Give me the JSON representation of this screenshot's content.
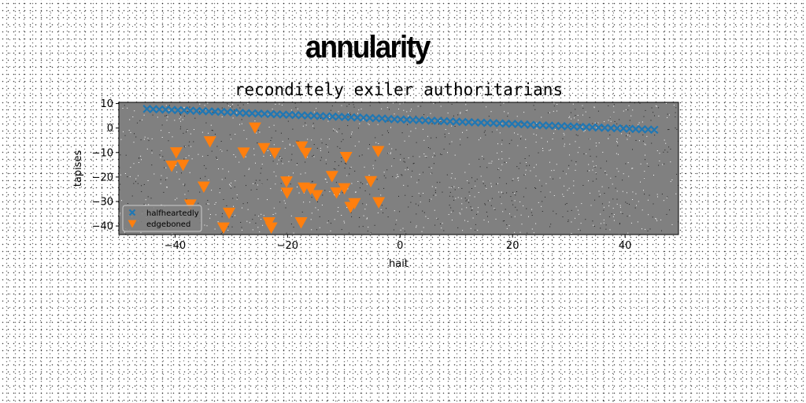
{
  "page": {
    "title": "annularity"
  },
  "chart_data": {
    "type": "scatter",
    "title": "reconditely exiler authoritarians",
    "xlabel": "hait",
    "ylabel": "tapises",
    "xlim": [
      -50,
      49.5
    ],
    "ylim": [
      -43.5,
      10.5
    ],
    "xticks": [
      -40,
      -20,
      0,
      20,
      40
    ],
    "yticks": [
      10,
      0,
      -10,
      -20,
      -30,
      -40
    ],
    "grid": false,
    "legend_position": "lower-left",
    "background": "#808080",
    "series": [
      {
        "name": "halfheartedly",
        "marker": "x",
        "color": "#1f77b4",
        "x": [
          -45.0,
          -43.9,
          -42.8,
          -41.7,
          -40.6,
          -39.5,
          -38.4,
          -37.3,
          -36.2,
          -35.1,
          -34.0,
          -32.9,
          -31.8,
          -30.7,
          -29.6,
          -28.5,
          -27.4,
          -26.3,
          -25.2,
          -24.1,
          -23.0,
          -21.9,
          -20.8,
          -19.7,
          -18.6,
          -17.5,
          -16.4,
          -15.3,
          -14.2,
          -13.1,
          -12.0,
          -10.9,
          -9.8,
          -8.7,
          -7.6,
          -6.5,
          -5.4,
          -4.3,
          -3.2,
          -2.1,
          -1.0,
          0.1,
          1.2,
          2.3,
          3.4,
          4.5,
          5.6,
          6.7,
          7.8,
          8.9,
          10.0,
          11.1,
          12.2,
          13.3,
          14.4,
          15.5,
          16.6,
          17.7,
          18.8,
          19.9,
          21.0,
          22.1,
          23.2,
          24.3,
          25.4,
          26.5,
          27.6,
          28.7,
          29.8,
          30.9,
          32.0,
          33.1,
          34.2,
          35.3,
          36.4,
          37.5,
          38.6,
          39.7,
          40.8,
          41.9,
          43.0,
          44.1,
          45.2
        ],
        "y": [
          7.8,
          7.7,
          7.6,
          7.5,
          7.4,
          7.3,
          7.2,
          7.1,
          7.0,
          6.9,
          6.8,
          6.7,
          6.6,
          6.5,
          6.4,
          6.2,
          6.1,
          6.0,
          5.9,
          5.8,
          5.7,
          5.6,
          5.5,
          5.4,
          5.3,
          5.2,
          5.1,
          5.0,
          4.9,
          4.8,
          4.7,
          4.6,
          4.5,
          4.4,
          4.3,
          4.2,
          4.1,
          4.0,
          3.9,
          3.7,
          3.6,
          3.5,
          3.4,
          3.3,
          3.2,
          3.1,
          3.0,
          2.9,
          2.8,
          2.7,
          2.6,
          2.5,
          2.4,
          2.3,
          2.2,
          2.1,
          2.0,
          1.9,
          1.8,
          1.7,
          1.6,
          1.5,
          1.3,
          1.2,
          1.1,
          1.0,
          0.9,
          0.8,
          0.7,
          0.6,
          0.5,
          0.4,
          0.3,
          0.2,
          0.1,
          0.0,
          -0.1,
          -0.2,
          -0.3,
          -0.4,
          -0.5,
          -0.6,
          -0.7
        ]
      },
      {
        "name": "edgeboned",
        "marker": "triangle-down",
        "color": "#ff7f0e",
        "x": [
          -39.8,
          -40.6,
          -38.6,
          -33.8,
          -34.9,
          -37.3,
          -25.8,
          -27.8,
          -24.2,
          -22.3,
          -17.5,
          -16.8,
          -20.2,
          -20.1,
          -17.1,
          -15.9,
          -14.8,
          -12.1,
          -11.3,
          -9.6,
          -9.9,
          -5.2,
          -3.9,
          -3.8,
          -8.8,
          -8.1,
          -30.4,
          -31.4,
          -23.3,
          -22.9,
          -17.6
        ],
        "y": [
          -9.9,
          -15.4,
          -15.0,
          -5.4,
          -23.9,
          -31.2,
          0.2,
          -10.0,
          -8.2,
          -10.1,
          -7.5,
          -10.1,
          -21.8,
          -26.4,
          -24.3,
          -24.8,
          -27.4,
          -19.6,
          -26.3,
          -11.8,
          -24.6,
          -21.7,
          -9.4,
          -30.3,
          -32.2,
          -30.7,
          -34.6,
          -40.6,
          -38.5,
          -40.6,
          -38.5
        ]
      }
    ]
  }
}
